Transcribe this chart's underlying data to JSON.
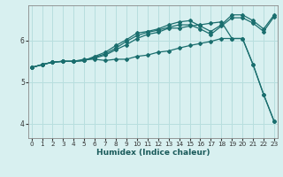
{
  "xlabel": "Humidex (Indice chaleur)",
  "bg_color": "#d8f0f0",
  "grid_color": "#b8dede",
  "line_color": "#1a6e6e",
  "marker": "D",
  "markersize": 2.0,
  "linewidth": 0.9,
  "xlim": [
    -0.3,
    23.3
  ],
  "ylim": [
    3.65,
    6.85
  ],
  "yticks": [
    4,
    5,
    6
  ],
  "xticks": [
    0,
    1,
    2,
    3,
    4,
    5,
    6,
    7,
    8,
    9,
    10,
    11,
    12,
    13,
    14,
    15,
    16,
    17,
    18,
    19,
    20,
    21,
    22,
    23
  ],
  "lines": [
    [
      0,
      5.35,
      1,
      5.42,
      2,
      5.48,
      3,
      5.5,
      4,
      5.5,
      5,
      5.52,
      6,
      5.58,
      7,
      5.65,
      8,
      5.78,
      9,
      5.9,
      10,
      6.05,
      11,
      6.15,
      12,
      6.2,
      13,
      6.3,
      14,
      6.3,
      15,
      6.35,
      16,
      6.38,
      17,
      6.42,
      18,
      6.45,
      19,
      6.05,
      20,
      6.05,
      21,
      5.42,
      22,
      4.7,
      23,
      4.05
    ],
    [
      0,
      5.35,
      1,
      5.42,
      2,
      5.48,
      3,
      5.5,
      4,
      5.5,
      5,
      5.55,
      6,
      5.55,
      7,
      5.52,
      8,
      5.55,
      9,
      5.55,
      10,
      5.62,
      11,
      5.65,
      12,
      5.72,
      13,
      5.75,
      14,
      5.82,
      15,
      5.88,
      16,
      5.93,
      17,
      5.98,
      18,
      6.05,
      19,
      6.05,
      20,
      6.05,
      21,
      5.42,
      22,
      4.7,
      23,
      4.05
    ],
    [
      0,
      5.35,
      1,
      5.42,
      2,
      5.48,
      3,
      5.5,
      4,
      5.5,
      5,
      5.52,
      6,
      5.6,
      7,
      5.68,
      8,
      5.82,
      9,
      5.98,
      10,
      6.12,
      11,
      6.2,
      12,
      6.25,
      13,
      6.32,
      14,
      6.38,
      15,
      6.38,
      16,
      6.28,
      17,
      6.15,
      18,
      6.35,
      19,
      6.55,
      20,
      6.55,
      21,
      6.42,
      22,
      6.22,
      23,
      6.58
    ],
    [
      0,
      5.35,
      1,
      5.42,
      2,
      5.48,
      3,
      5.5,
      4,
      5.5,
      5,
      5.52,
      6,
      5.62,
      7,
      5.72,
      8,
      5.88,
      9,
      6.02,
      10,
      6.18,
      11,
      6.22,
      12,
      6.28,
      13,
      6.38,
      14,
      6.45,
      15,
      6.48,
      16,
      6.35,
      17,
      6.22,
      18,
      6.38,
      19,
      6.62,
      20,
      6.62,
      21,
      6.48,
      22,
      6.28,
      23,
      6.62
    ]
  ]
}
